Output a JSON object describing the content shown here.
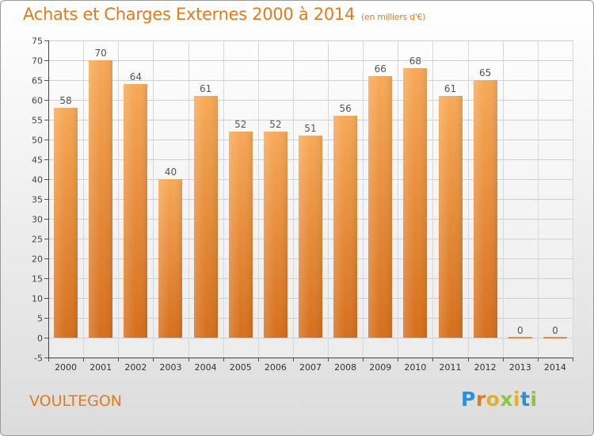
{
  "header": {
    "title": "Achats et Charges Externes 2000 à 2014",
    "subtitle": "(en milliers d'€)"
  },
  "footer": {
    "commune": "VOULTEGON",
    "brand": "Proxiti"
  },
  "colors": {
    "accent": "#e07b1f",
    "bar_light": "#f6a855",
    "bar_dark": "#d9711e",
    "grid": "#d0d0d0"
  },
  "chart_data": {
    "type": "bar",
    "title": "Achats et Charges Externes 2000 à 2014",
    "subtitle": "(en milliers d'€)",
    "xlabel": "",
    "ylabel": "",
    "categories": [
      "2000",
      "2001",
      "2002",
      "2003",
      "2004",
      "2005",
      "2006",
      "2007",
      "2008",
      "2009",
      "2010",
      "2011",
      "2012",
      "2013",
      "2014"
    ],
    "values": [
      58,
      70,
      64,
      40,
      61,
      52,
      52,
      51,
      56,
      66,
      68,
      61,
      65,
      0,
      0
    ],
    "ylim": [
      -5,
      75
    ],
    "yticks": [
      -5,
      0,
      5,
      10,
      15,
      20,
      25,
      30,
      35,
      40,
      45,
      50,
      55,
      60,
      65,
      70,
      75
    ],
    "grid": true,
    "data_labels": true
  }
}
